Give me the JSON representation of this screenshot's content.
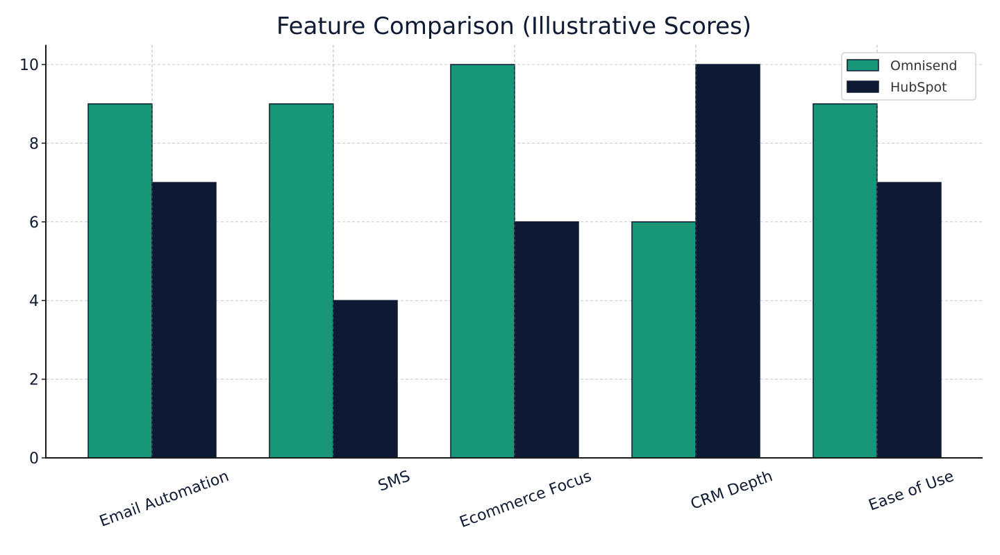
{
  "chart_data": {
    "type": "bar",
    "title": "Feature Comparison (Illustrative Scores)",
    "xlabel": "",
    "ylabel": "",
    "categories": [
      "Email Automation",
      "SMS",
      "Ecommerce Focus",
      "CRM Depth",
      "Ease of Use"
    ],
    "series": [
      {
        "name": "Omnisend",
        "values": [
          9,
          9,
          10,
          6,
          9
        ],
        "color": "#179678"
      },
      {
        "name": "HubSpot",
        "values": [
          7,
          4,
          6,
          10,
          7
        ],
        "color": "#0e1a33"
      }
    ],
    "ylim": [
      0,
      10.5
    ],
    "yticks": [
      0,
      2,
      4,
      6,
      8,
      10
    ],
    "grid": true,
    "grid_style": "dashed",
    "legend_position": "upper right",
    "xtick_rotation": 20
  }
}
